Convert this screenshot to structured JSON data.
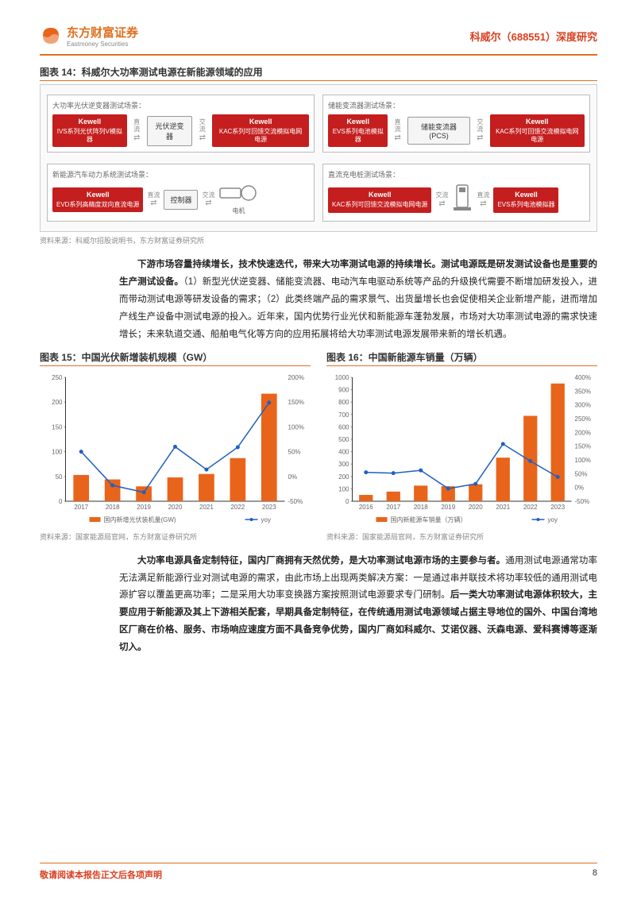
{
  "header": {
    "logo_cn": "东方财富证券",
    "logo_en": "Eastmoney Securities",
    "doc_title": "科威尔（688551）深度研究"
  },
  "figure14": {
    "title": "图表 14：科威尔大功率测试电源在新能源领域的应用",
    "source": "资料来源：科威尔招股说明书，东方财富证券研究所",
    "brand": "Kewell",
    "cells": [
      {
        "label": "大功率光伏逆变器测试场景：",
        "left_box": "IVS系列光伏阵列V模拟器",
        "mid_box": "光伏逆变器",
        "right_box": "KAC系列可回馈交流模拟电网电源",
        "arr1": "直流",
        "arr2": "交流"
      },
      {
        "label": "储能变流器测试场景：",
        "left_box": "EVS系列电池模拟器",
        "mid_box": "储能变流器(PCS)",
        "right_box": "KAC系列可回馈交流模拟电网电源",
        "arr1": "直流",
        "arr2": "交流"
      },
      {
        "label": "新能源汽车动力系统测试场景：",
        "left_box": "EVD系列高精度双向直流电源",
        "mid_box": "控制器",
        "right_type": "motor",
        "right_label": "电机",
        "arr1": "直流",
        "arr2": "交流"
      },
      {
        "label": "直流充电桩测试场景：",
        "left_box": "KAC系列可回馈交流模拟电网电源",
        "mid_type": "charger",
        "right_box": "EVS系列电池模拟器",
        "arr1": "交流",
        "arr2": "直流"
      }
    ]
  },
  "para1": {
    "lead": "下游市场容量持续增长，技术快速迭代，带来大功率测试电源的持续增长。测试电源既是研发测试设备也是重要的生产测试设备。",
    "rest": "（1）新型光伏逆变器、储能变流器、电动汽车电驱动系统等产品的升级换代需要不断增加研发投入，进而带动测试电源等研发设备的需求；（2）此类终端产品的需求景气、出货量增长也会促使相关企业新增产能，进而增加产线生产设备中测试电源的投入。近年来，国内优势行业光伏和新能源车蓬勃发展，市场对大功率测试电源的需求快速增长；未来轨道交通、船舶电气化等方向的应用拓展将给大功率测试电源发展带来新的增长机遇。"
  },
  "figure15": {
    "title": "图表 15：中国光伏新增装机规模（GW）",
    "source": "资料来源：国家能源局官网，东方财富证券研究所",
    "chart": {
      "type": "bar+line",
      "categories": [
        "2017",
        "2018",
        "2019",
        "2020",
        "2021",
        "2022",
        "2023"
      ],
      "bar_values": [
        53,
        44,
        30,
        48,
        55,
        87,
        217
      ],
      "line_values": [
        50,
        -18,
        -32,
        60,
        14,
        59,
        149
      ],
      "bar_color": "#e8641b",
      "line_color": "#2060c0",
      "y1_lim": [
        0,
        250
      ],
      "y1_step": 50,
      "y2_lim": [
        -50,
        200
      ],
      "y2_step": 50,
      "legend_bar": "国内新增光伏装机量(GW)",
      "legend_line": "yoy",
      "label_fontsize": 8
    }
  },
  "figure16": {
    "title": "图表 16：中国新能源车销量（万辆）",
    "source": "资料来源：国家能源局官网，东方财富证券研究所",
    "chart": {
      "type": "bar+line",
      "categories": [
        "2016",
        "2017",
        "2018",
        "2019",
        "2020",
        "2021",
        "2022",
        "2023"
      ],
      "bar_values": [
        51,
        78,
        126,
        121,
        137,
        352,
        689,
        950
      ],
      "line_values": [
        55,
        52,
        62,
        -4,
        13,
        158,
        96,
        38
      ],
      "bar_color": "#e8641b",
      "line_color": "#2060c0",
      "y1_lim": [
        0,
        1000
      ],
      "y1_step": 100,
      "y2_lim": [
        -50,
        400
      ],
      "y2_step": 50,
      "legend_bar": "国内新能源车销量（万辆）",
      "legend_line": "yoy",
      "label_fontsize": 8
    }
  },
  "para2": {
    "lead": "大功率电源具备定制特征，国内厂商拥有天然优势，是大功率测试电源市场的主要参与者。",
    "mid": "通用测试电源通常功率无法满足新能源行业对测试电源的需求，由此市场上出现两类解决方案：一是通过串并联技术将功率较低的通用测试电源扩容以覆盖更高功率；二是采用大功率变换器方案按照测试电源要求专门研制。",
    "bold2": "后一类大功率测试电源体积较大，主要应用于新能源及其上下游相关配套，早期具备定制特征，在传统通用测试电源领域占据主导地位的国外、中国台湾地区厂商在价格、服务、市场响应速度方面不具备竞争优势，国内厂商如科威尔、艾诺仪器、沃森电源、爱科赛博等逐渐切入。"
  },
  "footer": {
    "left": "敬请阅读本报告正文后各项声明",
    "page": "8"
  },
  "colors": {
    "orange": "#e8641b",
    "red": "#c41e1e",
    "blue": "#2060c0"
  }
}
